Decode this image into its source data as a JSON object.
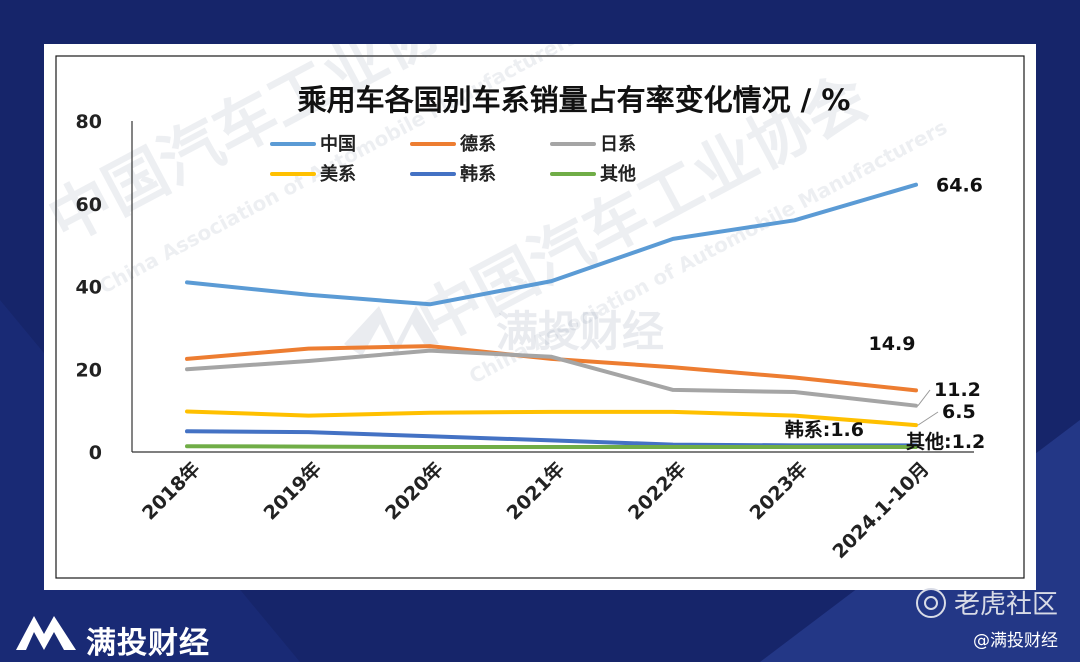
{
  "brand": {
    "name": "满投财经",
    "watermark": "满投财经",
    "assoc_cn": "中国汽车工业协会",
    "assoc_en": "China Association of Automobile Manufacturers"
  },
  "footer": {
    "community": "老虎社区",
    "handle": "@满投财经"
  },
  "colors": {
    "background": "#16256a",
    "card": "#ffffff"
  },
  "chart_data": {
    "type": "line",
    "title": "乘用车各国别车系销量占有率变化情况 / %",
    "xlabel": "",
    "ylabel": "",
    "categories": [
      "2018年",
      "2019年",
      "2020年",
      "2021年",
      "2022年",
      "2023年",
      "2024.1-10月"
    ],
    "ylim": [
      0,
      80
    ],
    "yticks": [
      0,
      20,
      40,
      60,
      80
    ],
    "grid": false,
    "legend_position": "top-left",
    "series": [
      {
        "name": "中国",
        "color": "#5b9bd5",
        "values": [
          41,
          38,
          35.7,
          41.3,
          51.5,
          56,
          64.6
        ]
      },
      {
        "name": "德系",
        "color": "#ed7d31",
        "values": [
          22.5,
          25,
          25.6,
          22.5,
          20.5,
          18,
          14.9
        ]
      },
      {
        "name": "日系",
        "color": "#a5a5a5",
        "values": [
          20,
          22,
          24.5,
          23,
          15,
          14.5,
          11.2
        ]
      },
      {
        "name": "美系",
        "color": "#ffc000",
        "values": [
          9.8,
          8.8,
          9.5,
          9.7,
          9.7,
          8.8,
          6.5
        ]
      },
      {
        "name": "韩系",
        "color": "#4472c4",
        "values": [
          5,
          4.8,
          3.8,
          2.8,
          1.8,
          1.6,
          1.6
        ]
      },
      {
        "name": "其他",
        "color": "#70ad47",
        "values": [
          1.4,
          1.3,
          1.2,
          1.2,
          1.2,
          1.2,
          1.2
        ]
      }
    ],
    "end_labels": [
      "64.6",
      "14.9",
      "11.2",
      "6.5",
      "韩系:1.6",
      "其他:1.2"
    ]
  }
}
